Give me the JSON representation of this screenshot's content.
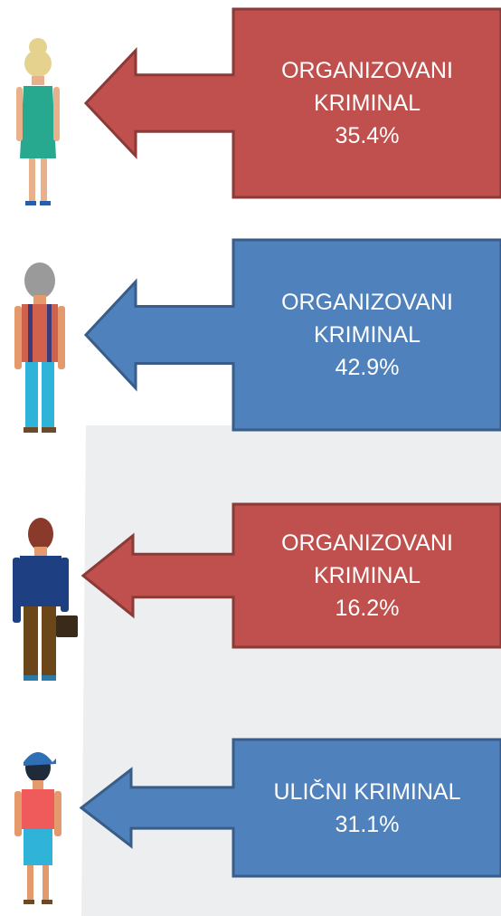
{
  "items": [
    {
      "label": "ORGANIZOVANI KRIMINAL",
      "value": "35.4%",
      "color": "#c0504d"
    },
    {
      "label": "ORGANIZOVANI KRIMINAL",
      "value": "42.9%",
      "color": "#4f81bd"
    },
    {
      "label": "ORGANIZOVANI KRIMINAL",
      "value": "16.2%",
      "color": "#c0504d"
    },
    {
      "label": "ULIČNI KRIMINAL",
      "value": "31.1%",
      "color": "#4f81bd"
    }
  ]
}
